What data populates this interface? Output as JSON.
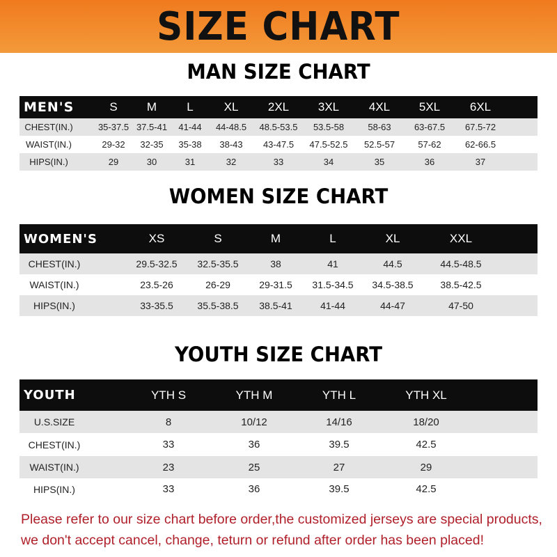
{
  "banner_title": "SIZE CHART",
  "men": {
    "title": "MAN SIZE CHART",
    "header": [
      "MEN'S",
      "S",
      "M",
      "L",
      "XL",
      "2XL",
      "3XL",
      "4XL",
      "5XL",
      "6XL"
    ],
    "rows": [
      [
        "CHEST(IN.)",
        "35-37.5",
        "37.5-41",
        "41-44",
        "44-48.5",
        "48.5-53.5",
        "53.5-58",
        "58-63",
        "63-67.5",
        "67.5-72"
      ],
      [
        "WAIST(IN.)",
        "29-32",
        "32-35",
        "35-38",
        "38-43",
        "43-47.5",
        "47.5-52.5",
        "52.5-57",
        "57-62",
        "62-66.5"
      ],
      [
        "HIPS(IN.)",
        "29",
        "30",
        "31",
        "32",
        "33",
        "34",
        "35",
        "36",
        "37"
      ]
    ]
  },
  "women": {
    "title": "WOMEN SIZE CHART",
    "header": [
      "WOMEN'S",
      "XS",
      "S",
      "M",
      "L",
      "XL",
      "XXL"
    ],
    "rows": [
      [
        "CHEST(IN.)",
        "29.5-32.5",
        "32.5-35.5",
        "38",
        "41",
        "44.5",
        "44.5-48.5"
      ],
      [
        "WAIST(IN.)",
        "23.5-26",
        "26-29",
        "29-31.5",
        "31.5-34.5",
        "34.5-38.5",
        "38.5-42.5"
      ],
      [
        "HIPS(IN.)",
        "33-35.5",
        "35.5-38.5",
        "38.5-41",
        "41-44",
        "44-47",
        "47-50"
      ]
    ]
  },
  "youth": {
    "title": "YOUTH SIZE CHART",
    "header": [
      "YOUTH",
      "YTH S",
      "YTH M",
      "YTH L",
      "YTH XL"
    ],
    "rows": [
      [
        "U.S.SIZE",
        "8",
        "10/12",
        "14/16",
        "18/20"
      ],
      [
        "CHEST(IN.)",
        "33",
        "36",
        "39.5",
        "42.5"
      ],
      [
        "WAIST(IN.)",
        "23",
        "25",
        "27",
        "29"
      ],
      [
        "HIPS(IN.)",
        "33",
        "36",
        "39.5",
        "42.5"
      ]
    ]
  },
  "notice": {
    "line1": "Please refer to our size chart before order,the customized jerseys are special products,",
    "line2": "we don't accept cancel, change, teturn or refund after order has been placed!"
  },
  "colors": {
    "banner": "#f07a1e",
    "header_row": "#0d0d0d",
    "stripe": "#e4e4e4",
    "notice": "#b0202a"
  }
}
